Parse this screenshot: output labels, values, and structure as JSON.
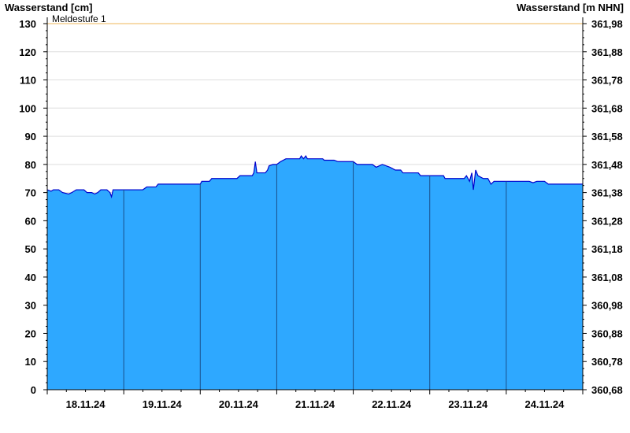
{
  "chart_data": {
    "type": "area",
    "left_axis_title": "Wasserstand [cm]",
    "right_axis_title": "Wasserstand [m NHN]",
    "ylim": [
      0,
      130
    ],
    "y_ticks": [
      0,
      10,
      20,
      30,
      40,
      50,
      60,
      70,
      80,
      90,
      100,
      110,
      120,
      130
    ],
    "right_ticks": [
      "360,68",
      "360,78",
      "360,88",
      "360,98",
      "361,08",
      "361,18",
      "361,28",
      "361,38",
      "361,48",
      "361,58",
      "361,68",
      "361,78",
      "361,88",
      "361,98"
    ],
    "x_range_days": [
      0,
      7
    ],
    "day_labels": [
      "18.11.24",
      "19.11.24",
      "20.11.24",
      "21.11.24",
      "22.11.24",
      "23.11.24",
      "24.11.24"
    ],
    "threshold": {
      "label": "Meldestufe 1",
      "value": 130,
      "color": "#f2c57a"
    },
    "colors": {
      "fill": "#2ea8ff",
      "line": "#0000cc",
      "day_separator": "#1a4f8a",
      "grid": "#dddddd"
    },
    "series": [
      {
        "values": [
          [
            0.0,
            71
          ],
          [
            0.05,
            70.5
          ],
          [
            0.08,
            71
          ],
          [
            0.15,
            71
          ],
          [
            0.2,
            70
          ],
          [
            0.28,
            69.5
          ],
          [
            0.32,
            70
          ],
          [
            0.38,
            71
          ],
          [
            0.48,
            71
          ],
          [
            0.52,
            70
          ],
          [
            0.58,
            70
          ],
          [
            0.62,
            69.5
          ],
          [
            0.66,
            70
          ],
          [
            0.7,
            71
          ],
          [
            0.78,
            71
          ],
          [
            0.82,
            70
          ],
          [
            0.84,
            68.5
          ],
          [
            0.86,
            71
          ],
          [
            1.0,
            71
          ],
          [
            1.25,
            71
          ],
          [
            1.3,
            72
          ],
          [
            1.42,
            72
          ],
          [
            1.45,
            73
          ],
          [
            2.0,
            73
          ],
          [
            2.02,
            74
          ],
          [
            2.12,
            74
          ],
          [
            2.15,
            75
          ],
          [
            2.48,
            75
          ],
          [
            2.52,
            76
          ],
          [
            2.68,
            76
          ],
          [
            2.7,
            77
          ],
          [
            2.72,
            81
          ],
          [
            2.74,
            77
          ],
          [
            2.85,
            77
          ],
          [
            2.88,
            78
          ],
          [
            2.9,
            79.5
          ],
          [
            2.95,
            80
          ],
          [
            3.0,
            80
          ],
          [
            3.05,
            81
          ],
          [
            3.12,
            82
          ],
          [
            3.3,
            82
          ],
          [
            3.32,
            83
          ],
          [
            3.35,
            82
          ],
          [
            3.38,
            83
          ],
          [
            3.4,
            82
          ],
          [
            3.6,
            82
          ],
          [
            3.62,
            81.5
          ],
          [
            3.75,
            81.5
          ],
          [
            3.8,
            81
          ],
          [
            4.0,
            81
          ],
          [
            4.05,
            80
          ],
          [
            4.25,
            80
          ],
          [
            4.3,
            79
          ],
          [
            4.38,
            80
          ],
          [
            4.48,
            79
          ],
          [
            4.55,
            78
          ],
          [
            4.62,
            78
          ],
          [
            4.65,
            77
          ],
          [
            4.85,
            77
          ],
          [
            4.88,
            76
          ],
          [
            5.0,
            76
          ],
          [
            5.18,
            76
          ],
          [
            5.2,
            75
          ],
          [
            5.45,
            75
          ],
          [
            5.48,
            76
          ],
          [
            5.52,
            74
          ],
          [
            5.55,
            77
          ],
          [
            5.57,
            71
          ],
          [
            5.6,
            78
          ],
          [
            5.63,
            76
          ],
          [
            5.7,
            75
          ],
          [
            5.76,
            75
          ],
          [
            5.8,
            73
          ],
          [
            5.84,
            74
          ],
          [
            5.9,
            74
          ],
          [
            6.0,
            74
          ],
          [
            6.3,
            74
          ],
          [
            6.35,
            73.5
          ],
          [
            6.4,
            74
          ],
          [
            6.5,
            74
          ],
          [
            6.55,
            73
          ],
          [
            6.6,
            73
          ],
          [
            7.0,
            73
          ]
        ]
      }
    ]
  }
}
